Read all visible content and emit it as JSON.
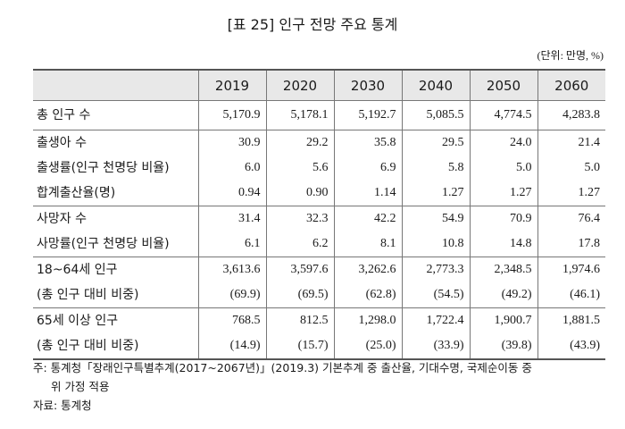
{
  "title": "[표 25] 인구 전망 주요 통계",
  "unit": "(단위: 만명, %)",
  "table": {
    "columns": [
      "2019",
      "2020",
      "2030",
      "2040",
      "2050",
      "2060"
    ],
    "groups": [
      {
        "rows": [
          {
            "label": "총 인구 수",
            "values": [
              "5,170.9",
              "5,178.1",
              "5,192.7",
              "5,085.5",
              "4,774.5",
              "4,283.8"
            ]
          }
        ]
      },
      {
        "rows": [
          {
            "label": "출생아 수",
            "values": [
              "30.9",
              "29.2",
              "35.8",
              "29.5",
              "24.0",
              "21.4"
            ]
          },
          {
            "label": "출생률(인구 천명당 비율)",
            "values": [
              "6.0",
              "5.6",
              "6.9",
              "5.8",
              "5.0",
              "5.0"
            ]
          },
          {
            "label": "합계출산율(명)",
            "values": [
              "0.94",
              "0.90",
              "1.14",
              "1.27",
              "1.27",
              "1.27"
            ]
          }
        ]
      },
      {
        "rows": [
          {
            "label": "사망자 수",
            "values": [
              "31.4",
              "32.3",
              "42.2",
              "54.9",
              "70.9",
              "76.4"
            ]
          },
          {
            "label": "사망률(인구 천명당 비율)",
            "values": [
              "6.1",
              "6.2",
              "8.1",
              "10.8",
              "14.8",
              "17.8"
            ]
          }
        ]
      },
      {
        "rows": [
          {
            "label": "18~64세 인구",
            "values": [
              "3,613.6",
              "3,597.6",
              "3,262.6",
              "2,773.3",
              "2,348.5",
              "1,974.6"
            ]
          },
          {
            "label": "(총 인구 대비 비중)",
            "values": [
              "(69.9)",
              "(69.5)",
              "(62.8)",
              "(54.5)",
              "(49.2)",
              "(46.1)"
            ]
          }
        ]
      },
      {
        "rows": [
          {
            "label": "65세 이상 인구",
            "values": [
              "768.5",
              "812.5",
              "1,298.0",
              "1,722.4",
              "1,900.7",
              "1,881.5"
            ]
          },
          {
            "label": "(총 인구 대비 비중)",
            "values": [
              "(14.9)",
              "(15.7)",
              "(25.0)",
              "(33.9)",
              "(39.8)",
              "(43.9)"
            ]
          }
        ]
      }
    ]
  },
  "note": {
    "line1": "주: 통계청「장래인구특별추계(2017~2067년)」(2019.3) 기본추계 중 출산율, 기대수명, 국제순이동 중",
    "line2": "위 가정 적용",
    "source": "자료: 통계청"
  }
}
